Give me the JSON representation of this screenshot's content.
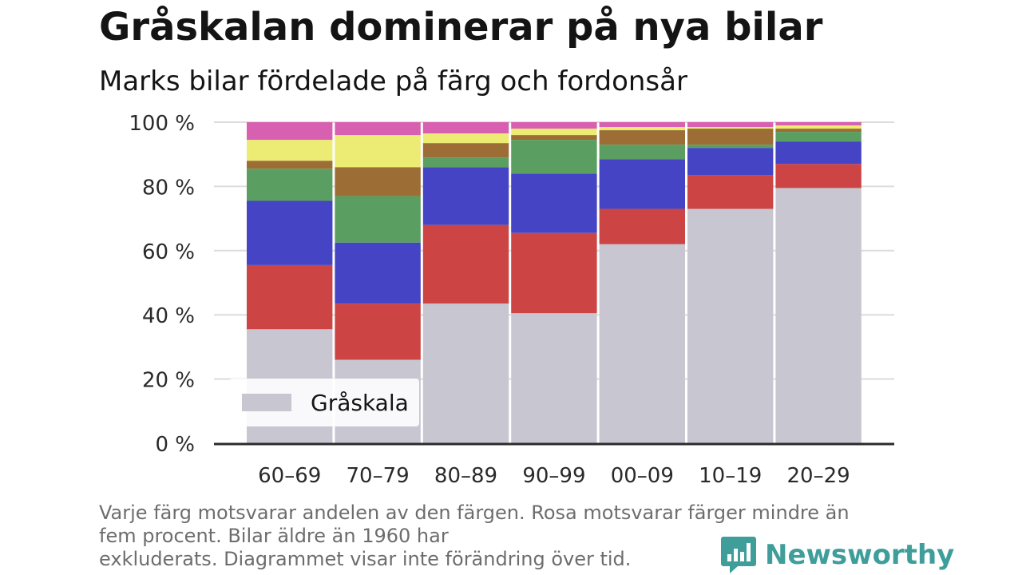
{
  "header": {
    "title": "Gråskalan dominerar på nya bilar",
    "subtitle": "Marks bilar fördelade på färg och fordonsår"
  },
  "caption": {
    "line1": "Varje färg motsvarar andelen av den färgen. Rosa motsvarar färger mindre än",
    "line2": "fem procent. Bilar äldre än 1960 har",
    "line3": "exkluderats. Diagrammet visar inte förändring över tid."
  },
  "brand": {
    "name": "Newsworthy",
    "icon": "newsworthy-logo-icon",
    "color": "#3f9e9a"
  },
  "chart_data": {
    "type": "bar",
    "stacked": true,
    "categories": [
      "60–69",
      "70–79",
      "80–89",
      "90–99",
      "00–09",
      "10–19",
      "20–29"
    ],
    "ylim": [
      0,
      100
    ],
    "yticks": [
      0,
      20,
      40,
      60,
      80,
      100
    ],
    "ytick_labels": [
      "0 %",
      "20 %",
      "40 %",
      "60 %",
      "80 %",
      "100 %"
    ],
    "grid": true,
    "legend": {
      "position": "bottom-left",
      "entries": [
        "Gråskala"
      ]
    },
    "series": [
      {
        "name": "Gråskala",
        "color": "#c8c6d1",
        "values": [
          35.5,
          26,
          43.5,
          40.5,
          62,
          73,
          79.5
        ]
      },
      {
        "color": "#cc4444",
        "values": [
          20,
          17.5,
          24.5,
          25,
          11,
          10.5,
          7.5
        ]
      },
      {
        "color": "#4444c4",
        "values": [
          20,
          19,
          18,
          18.5,
          15.5,
          8.5,
          7
        ]
      },
      {
        "color": "#5b9e62",
        "values": [
          10,
          14.5,
          3,
          10.5,
          4.5,
          1,
          3
        ]
      },
      {
        "color": "#9c6e35",
        "values": [
          2.5,
          9,
          4.5,
          1.5,
          4.5,
          5,
          1
        ]
      },
      {
        "color": "#ecec74",
        "values": [
          6.5,
          10,
          3,
          2,
          1,
          0.5,
          1
        ]
      },
      {
        "color": "#d860b0",
        "values": [
          5.5,
          4,
          3.5,
          2,
          1.5,
          1.5,
          1
        ]
      }
    ]
  }
}
